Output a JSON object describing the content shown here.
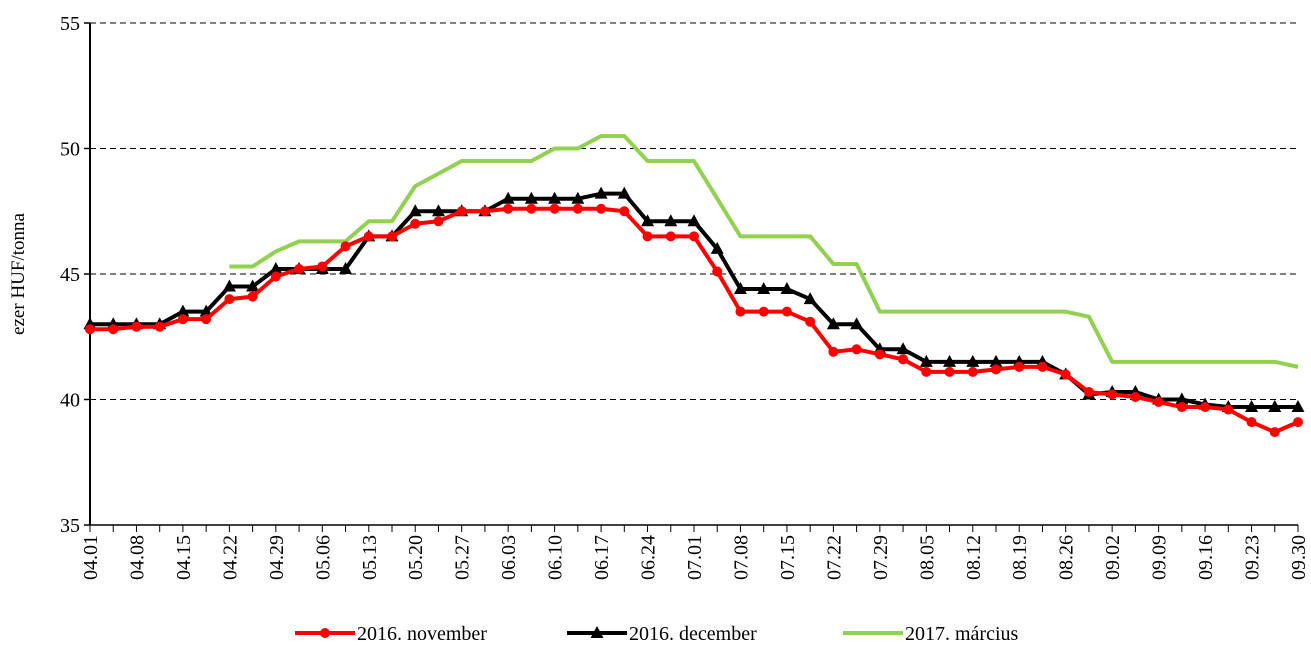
{
  "chart_data": {
    "type": "line",
    "y_label": "ezer HUF/tonna",
    "categories": [
      "04.01",
      null,
      "04.08",
      null,
      "04.15",
      null,
      "04.22",
      null,
      "04.29",
      null,
      "05.06",
      null,
      "05.13",
      null,
      "05.20",
      null,
      "05.27",
      null,
      "06.03",
      null,
      "06.10",
      null,
      "06.17",
      null,
      "06.24",
      null,
      "07.01",
      null,
      "07.08",
      null,
      "07.15",
      null,
      "07.22",
      null,
      "07.29",
      null,
      "08.05",
      null,
      "08.12",
      null,
      "08.19",
      null,
      "08.26",
      null,
      "09.02",
      null,
      "09.09",
      null,
      "09.16",
      null,
      "09.23",
      null,
      "09.30"
    ],
    "series": [
      {
        "name": "2016. november",
        "color": "#ff0000",
        "marker": "circle",
        "values": [
          42.8,
          42.8,
          42.9,
          42.9,
          43.2,
          43.2,
          44.0,
          44.1,
          44.9,
          45.2,
          45.3,
          46.1,
          46.5,
          46.5,
          47.0,
          47.1,
          47.5,
          47.5,
          47.6,
          47.6,
          47.6,
          47.6,
          47.6,
          47.5,
          46.5,
          46.5,
          46.5,
          45.1,
          43.5,
          43.5,
          43.5,
          43.1,
          41.9,
          42.0,
          41.8,
          41.6,
          41.1,
          41.1,
          41.1,
          41.2,
          41.3,
          41.3,
          41.0,
          40.3,
          40.2,
          40.1,
          39.9,
          39.7,
          39.7,
          39.6,
          39.1,
          38.7,
          39.1
        ]
      },
      {
        "name": "2016. december",
        "color": "#000000",
        "marker": "triangle",
        "values": [
          43.0,
          43.0,
          43.0,
          43.0,
          43.5,
          43.5,
          44.5,
          44.5,
          45.2,
          45.2,
          45.2,
          45.2,
          46.5,
          46.5,
          47.5,
          47.5,
          47.5,
          47.5,
          48.0,
          48.0,
          48.0,
          48.0,
          48.2,
          48.2,
          47.1,
          47.1,
          47.1,
          46.0,
          44.4,
          44.4,
          44.4,
          44.0,
          43.0,
          43.0,
          42.0,
          42.0,
          41.5,
          41.5,
          41.5,
          41.5,
          41.5,
          41.5,
          41.0,
          40.2,
          40.3,
          40.3,
          40.0,
          40.0,
          39.8,
          39.7,
          39.7,
          39.7,
          39.7
        ]
      },
      {
        "name": "2017. március",
        "color": "#92d050",
        "marker": "none",
        "values": [
          null,
          null,
          null,
          null,
          null,
          null,
          45.3,
          45.3,
          45.9,
          46.3,
          46.3,
          46.3,
          47.1,
          47.1,
          48.5,
          49.0,
          49.5,
          49.5,
          49.5,
          49.5,
          50.0,
          50.0,
          50.5,
          50.5,
          49.5,
          49.5,
          49.5,
          48.0,
          46.5,
          46.5,
          46.5,
          46.5,
          45.4,
          45.4,
          43.5,
          43.5,
          43.5,
          43.5,
          43.5,
          43.5,
          43.5,
          43.5,
          43.5,
          43.3,
          41.5,
          41.5,
          41.5,
          41.5,
          41.5,
          41.5,
          41.5,
          41.5,
          41.3
        ]
      }
    ],
    "ylim": [
      35,
      55
    ],
    "yticks": [
      35,
      40,
      45,
      50,
      55
    ],
    "grid": true,
    "legend": "bottom"
  }
}
